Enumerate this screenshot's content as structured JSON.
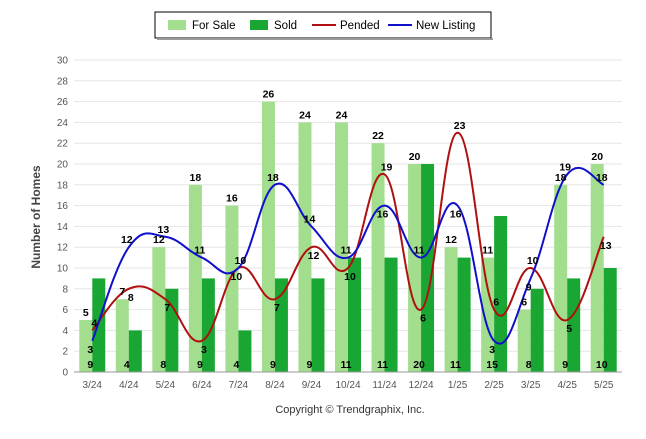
{
  "colors": {
    "for_sale": "#a3de8e",
    "sold": "#1aa633",
    "pended": "#b01010",
    "new_listing": "#1010cc",
    "grid": "#e6e6e6",
    "axis_text": "#555555",
    "label_text": "#000000"
  },
  "chart_data": {
    "type": "bar",
    "ylabel": "Number of Homes",
    "xlabel": "",
    "ylim": [
      0,
      30
    ],
    "yticks": [
      0,
      2,
      4,
      6,
      8,
      10,
      12,
      14,
      16,
      18,
      20,
      22,
      24,
      26,
      28,
      30
    ],
    "grid": true,
    "legend_position": "top-center",
    "categories": [
      "3/24",
      "4/24",
      "5/24",
      "6/24",
      "7/24",
      "8/24",
      "9/24",
      "10/24",
      "11/24",
      "12/24",
      "1/25",
      "2/25",
      "3/25",
      "4/25",
      "5/25"
    ],
    "series": [
      {
        "name": "For Sale",
        "kind": "bar",
        "values": [
          5,
          7,
          12,
          18,
          16,
          26,
          24,
          24,
          22,
          20,
          12,
          11,
          6,
          18,
          20
        ]
      },
      {
        "name": "Sold",
        "kind": "bar",
        "values": [
          9,
          4,
          8,
          9,
          4,
          9,
          9,
          11,
          11,
          20,
          11,
          15,
          8,
          9,
          10
        ]
      },
      {
        "name": "Pended",
        "kind": "line",
        "values": [
          4,
          8,
          7,
          3,
          10,
          7,
          12,
          10,
          19,
          6,
          23,
          6,
          10,
          5,
          13
        ]
      },
      {
        "name": "New Listing",
        "kind": "line",
        "values": [
          3,
          12,
          13,
          11,
          10,
          18,
          14,
          11,
          16,
          11,
          16,
          3,
          9,
          19,
          18
        ]
      }
    ]
  },
  "copyright": "Copyright © Trendgraphix, Inc."
}
